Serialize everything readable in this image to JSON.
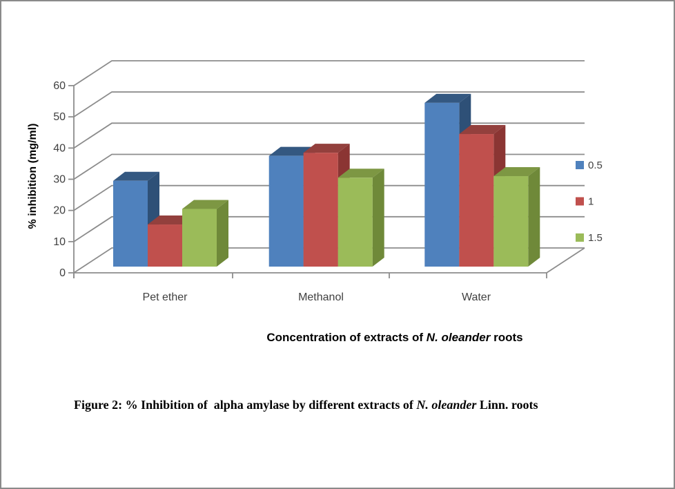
{
  "page": {
    "background": "#FFFFFF",
    "border_color": "#8A8A8A"
  },
  "chart_data": {
    "type": "bar",
    "subtype": "3d-clustered-column",
    "title": "",
    "categories": [
      "Pet ether",
      "Methanol",
      "Water"
    ],
    "series": [
      {
        "name": "0.5",
        "color": "#4F81BD",
        "color_top": "#345881",
        "color_side": "#2E5077",
        "values": [
          27.5,
          35.5,
          52.5
        ]
      },
      {
        "name": "1",
        "color": "#C0504D",
        "color_top": "#93403D",
        "color_side": "#8B3533",
        "values": [
          13.5,
          36.5,
          42.5
        ]
      },
      {
        "name": "1.5",
        "color": "#9BBB59",
        "color_top": "#7D9743",
        "color_side": "#6F8939",
        "values": [
          18.5,
          28.5,
          29
        ]
      }
    ],
    "xlabel_segments": {
      "prefix": "Concentration of extracts of ",
      "italic": "N. oleander",
      "suffix": " roots"
    },
    "ylabel": "% inhibition (mg/ml)",
    "ylim": [
      0,
      60
    ],
    "ytick_step": 10,
    "yticks": [
      0,
      10,
      20,
      30,
      40,
      50,
      60
    ],
    "legend_position": "right",
    "grid": true,
    "axis_color": "#8C8C8C",
    "tick_label_color": "#404040"
  },
  "caption": {
    "prefix": "Figure 2: % Inhibition of  alpha amylase by different extracts of ",
    "italic": "N. oleander",
    "suffix": " Linn. roots"
  }
}
